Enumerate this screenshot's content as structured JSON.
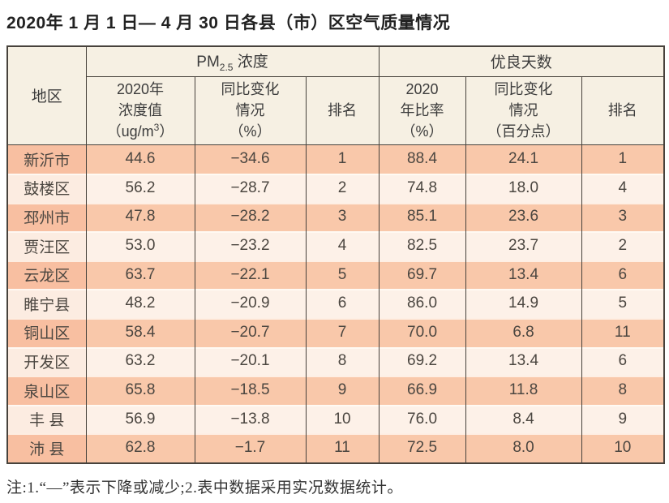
{
  "title": "2020年 1 月 1 日— 4 月 30 日各县（市）区空气质量情况",
  "table": {
    "header": {
      "region": "地区",
      "pm25_group": {
        "pm": "PM",
        "sub": "2.5",
        "rest": " 浓度"
      },
      "good_days_group": "优良天数",
      "pm_value": {
        "line1": "2020年",
        "line2": "浓度值",
        "line3a": "（ug/m",
        "sup": "3",
        "line3b": "）"
      },
      "pm_change": {
        "line1": "同比变化",
        "line2": "情况",
        "line3": "（%）"
      },
      "pm_rank": "排名",
      "gd_rate": {
        "line1": "2020",
        "line2": "年比率",
        "line3": "（%）"
      },
      "gd_change": {
        "line1": "同比变化",
        "line2": "情况",
        "line3": "（百分点）"
      },
      "gd_rank": "排名"
    },
    "rows": [
      {
        "region": "新沂市",
        "pm_value": "44.6",
        "pm_change": "−34.6",
        "pm_rank": "1",
        "gd_rate": "88.4",
        "gd_change": "24.1",
        "gd_rank": "1"
      },
      {
        "region": "鼓楼区",
        "pm_value": "56.2",
        "pm_change": "−28.7",
        "pm_rank": "2",
        "gd_rate": "74.8",
        "gd_change": "18.0",
        "gd_rank": "4"
      },
      {
        "region": "邳州市",
        "pm_value": "47.8",
        "pm_change": "−28.2",
        "pm_rank": "3",
        "gd_rate": "85.1",
        "gd_change": "23.6",
        "gd_rank": "3"
      },
      {
        "region": "贾汪区",
        "pm_value": "53.0",
        "pm_change": "−23.2",
        "pm_rank": "4",
        "gd_rate": "82.5",
        "gd_change": "23.7",
        "gd_rank": "2"
      },
      {
        "region": "云龙区",
        "pm_value": "63.7",
        "pm_change": "−22.1",
        "pm_rank": "5",
        "gd_rate": "69.7",
        "gd_change": "13.4",
        "gd_rank": "6"
      },
      {
        "region": "睢宁县",
        "pm_value": "48.2",
        "pm_change": "−20.9",
        "pm_rank": "6",
        "gd_rate": "86.0",
        "gd_change": "14.9",
        "gd_rank": "5"
      },
      {
        "region": "铜山区",
        "pm_value": "58.4",
        "pm_change": "−20.7",
        "pm_rank": "7",
        "gd_rate": "70.0",
        "gd_change": "6.8",
        "gd_rank": "11"
      },
      {
        "region": "开发区",
        "pm_value": "63.2",
        "pm_change": "−20.1",
        "pm_rank": "8",
        "gd_rate": "69.2",
        "gd_change": "13.4",
        "gd_rank": "6"
      },
      {
        "region": "泉山区",
        "pm_value": "65.8",
        "pm_change": "−18.5",
        "pm_rank": "9",
        "gd_rate": "66.9",
        "gd_change": "11.8",
        "gd_rank": "8"
      },
      {
        "region": "丰 县",
        "pm_value": "56.9",
        "pm_change": "−13.8",
        "pm_rank": "10",
        "gd_rate": "76.0",
        "gd_change": "8.4",
        "gd_rank": "9"
      },
      {
        "region": "沛 县",
        "pm_value": "62.8",
        "pm_change": "−1.7",
        "pm_rank": "11",
        "gd_rate": "72.5",
        "gd_change": "8.0",
        "gd_rank": "10"
      }
    ]
  },
  "note": "注:1.“—”表示下降或减少;2.表中数据采用实况数据统计。",
  "colors": {
    "row_dark": "#f9c8aa",
    "row_light": "#fdf1e8",
    "header_bg": "#f6f0e3",
    "border": "#47423c"
  }
}
